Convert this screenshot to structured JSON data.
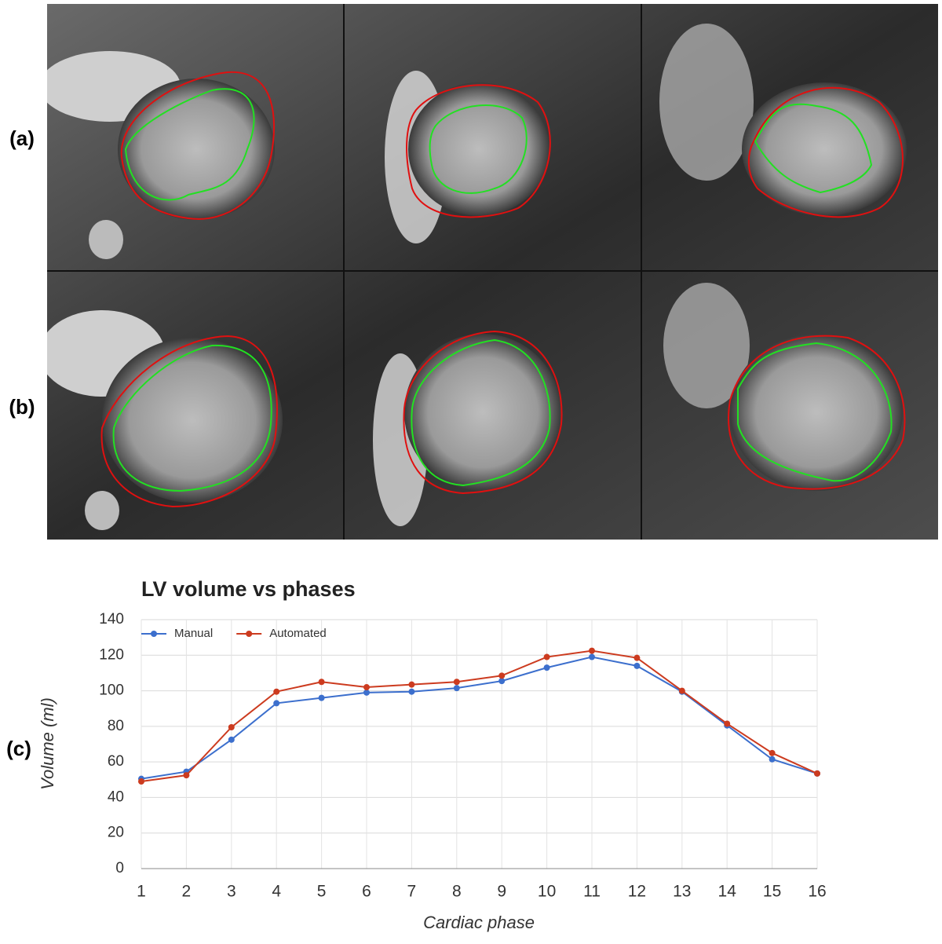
{
  "panel_labels": [
    "(a)",
    "(b)",
    "(c)"
  ],
  "chart_data": {
    "type": "line",
    "title": "LV volume vs phases",
    "x_label": "Cardiac phase",
    "y_label": "Volume (ml)",
    "x": [
      1,
      2,
      3,
      4,
      5,
      6,
      7,
      8,
      9,
      10,
      11,
      12,
      13,
      14,
      15,
      16
    ],
    "series": [
      {
        "name": "Manual",
        "color": "#3c6fcd",
        "values": [
          50.5,
          54.5,
          72.5,
          93,
          96,
          99,
          99.5,
          101.5,
          105.5,
          113,
          119,
          114,
          99.5,
          80.5,
          61.5,
          53.5
        ]
      },
      {
        "name": "Automated",
        "color": "#cc3b1f",
        "values": [
          49,
          52.5,
          79.5,
          99.5,
          105,
          102,
          103.5,
          105,
          108.5,
          119,
          122.5,
          118.5,
          100,
          81.5,
          65,
          53.5
        ]
      }
    ],
    "xlim": [
      1,
      16
    ],
    "xticks": [
      1,
      2,
      3,
      4,
      5,
      6,
      7,
      8,
      9,
      10,
      11,
      12,
      13,
      14,
      15,
      16
    ],
    "ylim": [
      0,
      140
    ],
    "yticks": [
      0,
      20,
      40,
      60,
      80,
      100,
      120,
      140
    ],
    "grid": true,
    "legend": "top-left"
  }
}
